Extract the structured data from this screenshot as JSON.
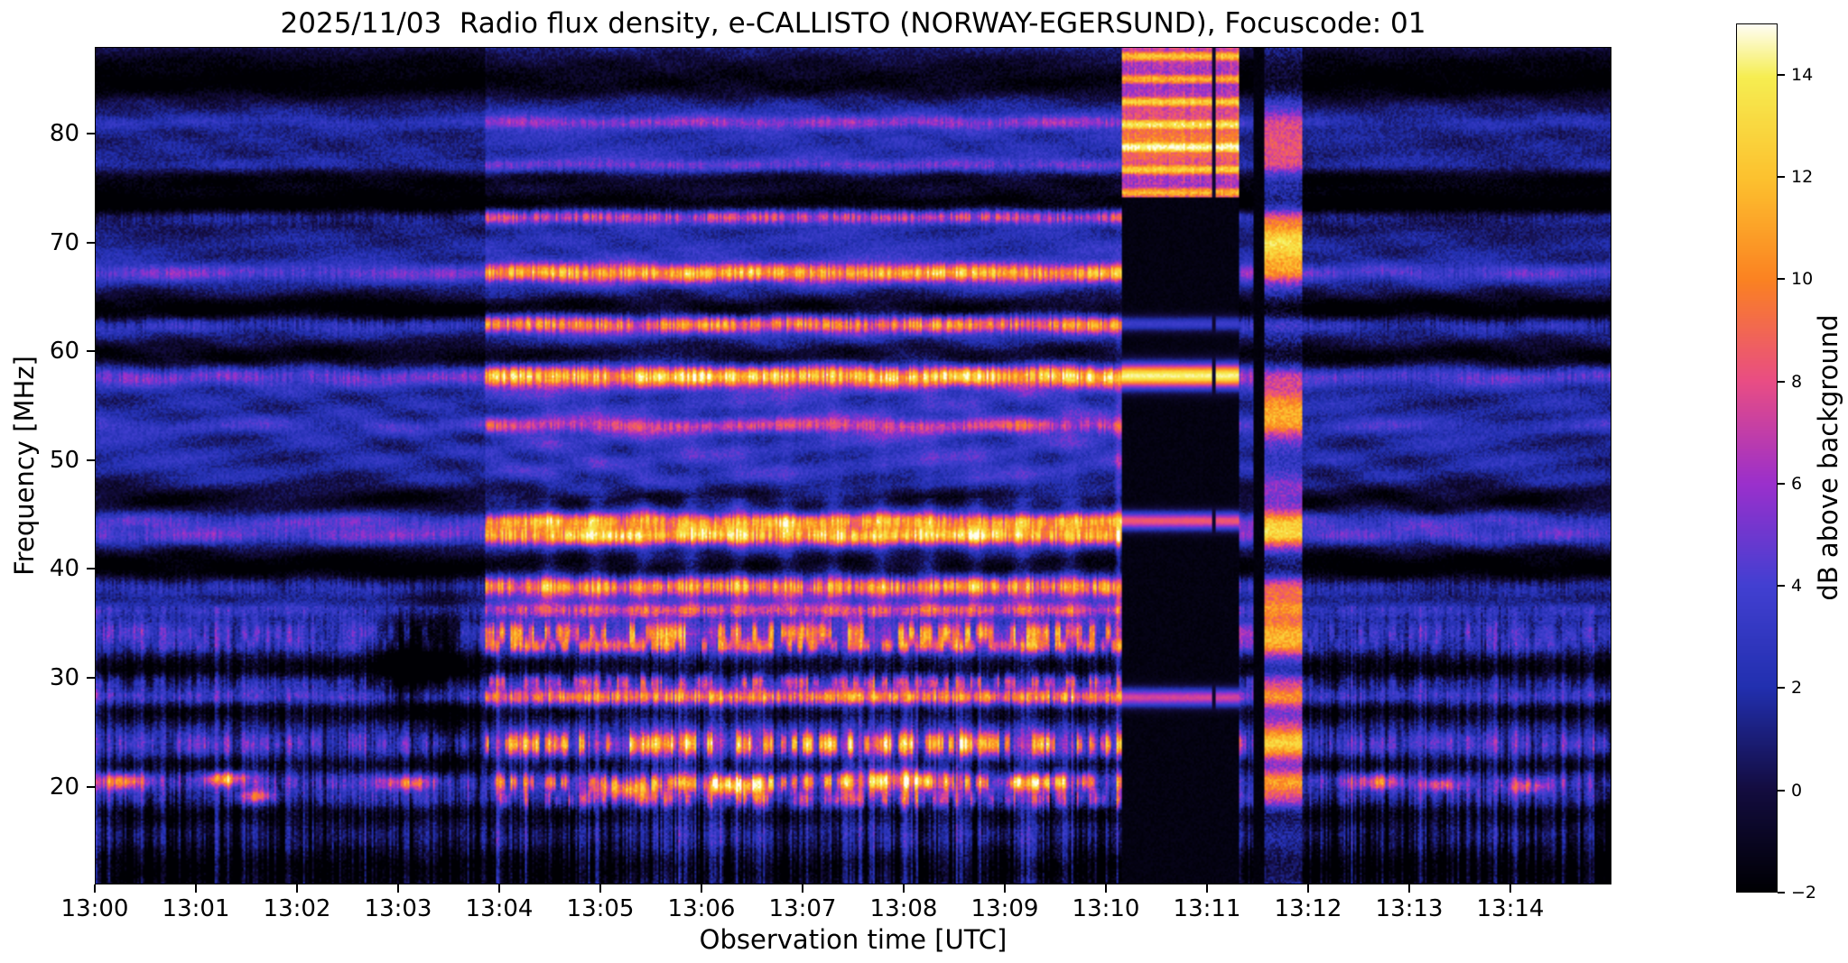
{
  "chart_data": {
    "type": "heatmap",
    "title": "2025/11/03  Radio flux density, e-CALLISTO (NORWAY-EGERSUND), Focuscode: 01",
    "xlabel": "Observation time [UTC]",
    "ylabel": "Frequency [MHz]",
    "colorbar_label": "dB above background",
    "x_ticks": [
      "13:00",
      "13:01",
      "13:02",
      "13:03",
      "13:04",
      "13:05",
      "13:06",
      "13:07",
      "13:08",
      "13:09",
      "13:10",
      "13:11",
      "13:12",
      "13:13",
      "13:14"
    ],
    "x_range_min": [
      0,
      15
    ],
    "y_ticks": [
      20,
      30,
      40,
      50,
      60,
      70,
      80
    ],
    "y_range_mhz": [
      11,
      88
    ],
    "value_range_db": [
      -2,
      15
    ],
    "colorbar_ticks": [
      -2,
      0,
      2,
      4,
      6,
      8,
      10,
      12,
      14
    ],
    "grid": false,
    "colormap_stops": [
      [
        -2.0,
        "#000004"
      ],
      [
        0.0,
        "#140d41"
      ],
      [
        2.0,
        "#2230b0"
      ],
      [
        4.0,
        "#4340d2"
      ],
      [
        6.0,
        "#9b30cc"
      ],
      [
        8.0,
        "#e94d85"
      ],
      [
        10.0,
        "#fb8222"
      ],
      [
        12.0,
        "#fdc22f"
      ],
      [
        14.0,
        "#f6ee52"
      ],
      [
        15.0,
        "#fffdf0"
      ]
    ],
    "segments": [
      {
        "t0": 0.0,
        "t1": 3.85,
        "base": 1.1,
        "noise": 1.6,
        "ripple": 0.9,
        "stripe": 2.6,
        "line_gain": 0.35
      },
      {
        "t0": 3.85,
        "t1": 10.17,
        "base": 2.1,
        "noise": 1.7,
        "ripple": 1.1,
        "stripe": 3.0,
        "line_gain": 1.0
      },
      {
        "t0": 11.33,
        "t1": 11.47,
        "base": 1.2,
        "noise": 1.4,
        "ripple": 0.8,
        "stripe": 2.0,
        "line_gain": 0.5
      },
      {
        "t0": 11.95,
        "t1": 15.01,
        "base": 1.0,
        "noise": 1.6,
        "ripple": 0.9,
        "stripe": 2.8,
        "line_gain": 0.3
      }
    ],
    "rfi_lines": [
      {
        "f": 81.2,
        "w": 0.45,
        "amp": 3.5
      },
      {
        "f": 77.2,
        "w": 0.45,
        "amp": 3.0
      },
      {
        "f": 72.5,
        "w": 0.5,
        "amp": 7.5
      },
      {
        "f": 67.3,
        "w": 0.6,
        "amp": 9.0
      },
      {
        "f": 62.6,
        "w": 0.6,
        "amp": 9.5
      },
      {
        "f": 57.8,
        "w": 0.7,
        "amp": 10.5
      },
      {
        "f": 53.2,
        "w": 0.5,
        "amp": 4.5
      },
      {
        "f": 44.4,
        "w": 0.55,
        "amp": 7.5
      },
      {
        "f": 43.0,
        "w": 0.6,
        "amp": 9.5
      },
      {
        "f": 38.4,
        "w": 0.7,
        "amp": 10.0
      },
      {
        "f": 36.2,
        "w": 0.45,
        "amp": 5.0
      },
      {
        "f": 34.1,
        "w": 0.7,
        "amp": 7.5,
        "patchy": true
      },
      {
        "f": 32.8,
        "w": 0.5,
        "amp": 6.0,
        "patchy": true
      },
      {
        "f": 29.6,
        "w": 0.5,
        "amp": 6.0,
        "patchy": true
      },
      {
        "f": 28.1,
        "w": 0.55,
        "amp": 8.0
      },
      {
        "f": 23.8,
        "w": 0.8,
        "amp": 9.0,
        "patchy": true
      },
      {
        "f": 20.3,
        "w": 0.6,
        "amp": 7.0,
        "patchy": true
      },
      {
        "f": 18.6,
        "w": 0.55,
        "amp": 5.0,
        "patchy": true
      }
    ],
    "dark_bands": [
      {
        "f": 86.6,
        "w": 1.2,
        "d": 2.5
      },
      {
        "f": 84.5,
        "w": 1.0,
        "d": 3.0
      },
      {
        "f": 76.0,
        "w": 0.7,
        "d": 2.5
      },
      {
        "f": 73.6,
        "w": 1.2,
        "d": 4.5
      },
      {
        "f": 63.8,
        "w": 1.1,
        "d": 4.5
      },
      {
        "f": 59.6,
        "w": 1.0,
        "d": 3.5
      },
      {
        "f": 46.4,
        "w": 1.0,
        "d": 3.0
      },
      {
        "f": 39.8,
        "w": 1.6,
        "d": 4.5
      },
      {
        "f": 30.8,
        "w": 1.0,
        "d": 3.5
      },
      {
        "f": 26.8,
        "w": 0.8,
        "d": 3.0
      },
      {
        "f": 21.9,
        "w": 0.6,
        "d": 2.5
      },
      {
        "f": 17.3,
        "w": 0.9,
        "d": 3.0
      },
      {
        "f": 12.5,
        "w": 1.5,
        "d": 2.5
      }
    ],
    "events": {
      "dropout": {
        "t0": 10.17,
        "t1": 11.33,
        "top_band_fmin": 74.2,
        "dark_line_t": 11.07,
        "lines": [
          {
            "f": 57.8,
            "w": 0.8,
            "amp": 16
          },
          {
            "f": 62.6,
            "w": 0.5,
            "amp": 5
          },
          {
            "f": 44.4,
            "w": 0.6,
            "amp": 10
          },
          {
            "f": 28.1,
            "w": 0.6,
            "amp": 9
          }
        ]
      },
      "black_gap": {
        "t0": 11.47,
        "t1": 11.58
      },
      "bright_column": {
        "t0": 11.58,
        "t1": 11.95,
        "patches": [
          {
            "f": 79.0,
            "w": 2.5,
            "amp": 6
          },
          {
            "f": 70.0,
            "w": 2.2,
            "amp": 11
          },
          {
            "f": 54.5,
            "w": 1.8,
            "amp": 9
          },
          {
            "f": 47.0,
            "w": 1.2,
            "amp": 5
          },
          {
            "f": 43.5,
            "w": 1.5,
            "amp": 8
          },
          {
            "f": 37.0,
            "w": 1.8,
            "amp": 7
          },
          {
            "f": 33.0,
            "w": 1.5,
            "amp": 6
          },
          {
            "f": 28.0,
            "w": 1.5,
            "amp": 6
          },
          {
            "f": 24.0,
            "w": 1.5,
            "amp": 7
          },
          {
            "f": 20.0,
            "w": 1.5,
            "amp": 6
          }
        ]
      },
      "periodic_columns": {
        "t0": 4.25,
        "t1": 10.0,
        "period": 0.47,
        "width": 0.09,
        "fmin": 35.5,
        "fmax": 46.5,
        "amp": 2.0,
        "amp_high": 0.7,
        "fmax_high": 57.5
      },
      "blobs": [
        {
          "t": 0.25,
          "f": 20.4,
          "wt": 0.28,
          "wf": 0.8,
          "amp": 7
        },
        {
          "t": 1.3,
          "f": 20.6,
          "wt": 0.22,
          "wf": 0.7,
          "amp": 9
        },
        {
          "t": 1.6,
          "f": 19.0,
          "wt": 0.18,
          "wf": 0.6,
          "amp": 6
        },
        {
          "t": 3.05,
          "f": 31.0,
          "wt": 0.28,
          "wf": 4.0,
          "amp": -4
        },
        {
          "t": 3.4,
          "f": 33.0,
          "wt": 0.35,
          "wf": 5.0,
          "amp": -3.5
        },
        {
          "t": 3.5,
          "f": 24.0,
          "wt": 0.3,
          "wf": 3.0,
          "amp": -3
        },
        {
          "t": 3.1,
          "f": 20.2,
          "wt": 0.25,
          "wf": 0.7,
          "amp": 6
        },
        {
          "t": 5.25,
          "f": 19.6,
          "wt": 0.3,
          "wf": 0.8,
          "amp": 7
        },
        {
          "t": 6.35,
          "f": 19.9,
          "wt": 0.35,
          "wf": 0.9,
          "amp": 8
        },
        {
          "t": 7.95,
          "f": 20.6,
          "wt": 0.5,
          "wf": 1.1,
          "amp": 6
        },
        {
          "t": 9.3,
          "f": 20.2,
          "wt": 0.3,
          "wf": 0.8,
          "amp": 6
        },
        {
          "t": 10.13,
          "f": 40.0,
          "wt": 0.03,
          "wf": 20,
          "amp": 3.5
        },
        {
          "t": 12.7,
          "f": 20.3,
          "wt": 0.28,
          "wf": 0.8,
          "amp": 7
        },
        {
          "t": 13.3,
          "f": 20.0,
          "wt": 0.2,
          "wf": 0.6,
          "amp": 6
        },
        {
          "t": 14.2,
          "f": 19.8,
          "wt": 0.25,
          "wf": 0.7,
          "amp": 5
        }
      ]
    }
  }
}
